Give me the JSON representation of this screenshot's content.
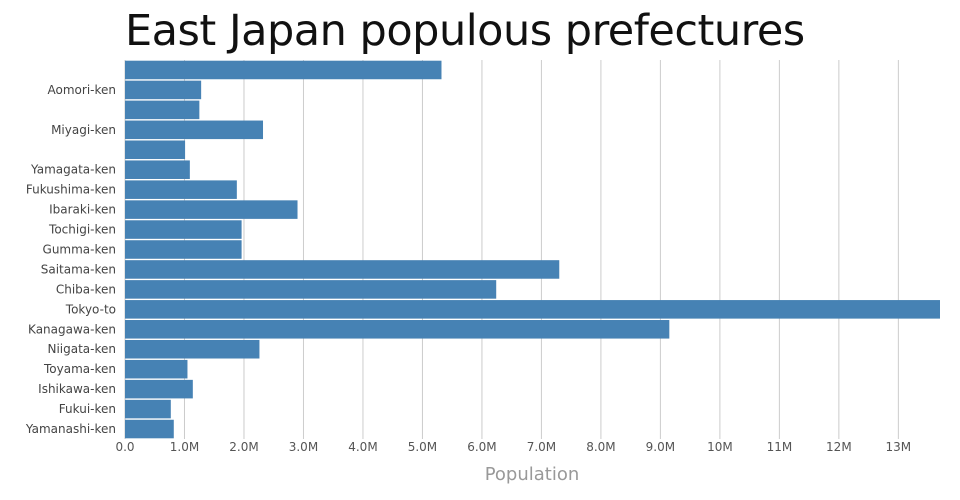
{
  "chart_data": {
    "type": "bar",
    "orientation": "horizontal",
    "title": "East Japan populous prefectures",
    "xlabel": "Population",
    "ylabel": "",
    "xlim": [
      0,
      13700000
    ],
    "grid": true,
    "bar_color": "#4682b4",
    "x_ticks": [
      {
        "value": 0,
        "label": "0.0"
      },
      {
        "value": 1000000,
        "label": "1.0M"
      },
      {
        "value": 2000000,
        "label": "2.0M"
      },
      {
        "value": 3000000,
        "label": "3.0M"
      },
      {
        "value": 4000000,
        "label": "4.0M"
      },
      {
        "value": 5000000,
        "label": "5.0M"
      },
      {
        "value": 6000000,
        "label": "6.0M"
      },
      {
        "value": 7000000,
        "label": "7.0M"
      },
      {
        "value": 8000000,
        "label": "8.0M"
      },
      {
        "value": 9000000,
        "label": "9.0M"
      },
      {
        "value": 10000000,
        "label": "10M"
      },
      {
        "value": 11000000,
        "label": "11M"
      },
      {
        "value": 12000000,
        "label": "12M"
      },
      {
        "value": 13000000,
        "label": "13M"
      }
    ],
    "categories": [
      "",
      "Aomori-ken",
      "",
      "Miyagi-ken",
      "",
      "Yamagata-ken",
      "Fukushima-ken",
      "Ibaraki-ken",
      "Tochigi-ken",
      "Gumma-ken",
      "Saitama-ken",
      "Chiba-ken",
      "Tokyo-to",
      "Kanagawa-ken",
      "Niigata-ken",
      "Toyama-ken",
      "Ishikawa-ken",
      "Fukui-ken",
      "Yamanashi-ken"
    ],
    "values": [
      5320000,
      1280000,
      1250000,
      2320000,
      1010000,
      1090000,
      1880000,
      2900000,
      1960000,
      1960000,
      7300000,
      6240000,
      13750000,
      9150000,
      2260000,
      1050000,
      1140000,
      770000,
      820000
    ]
  }
}
